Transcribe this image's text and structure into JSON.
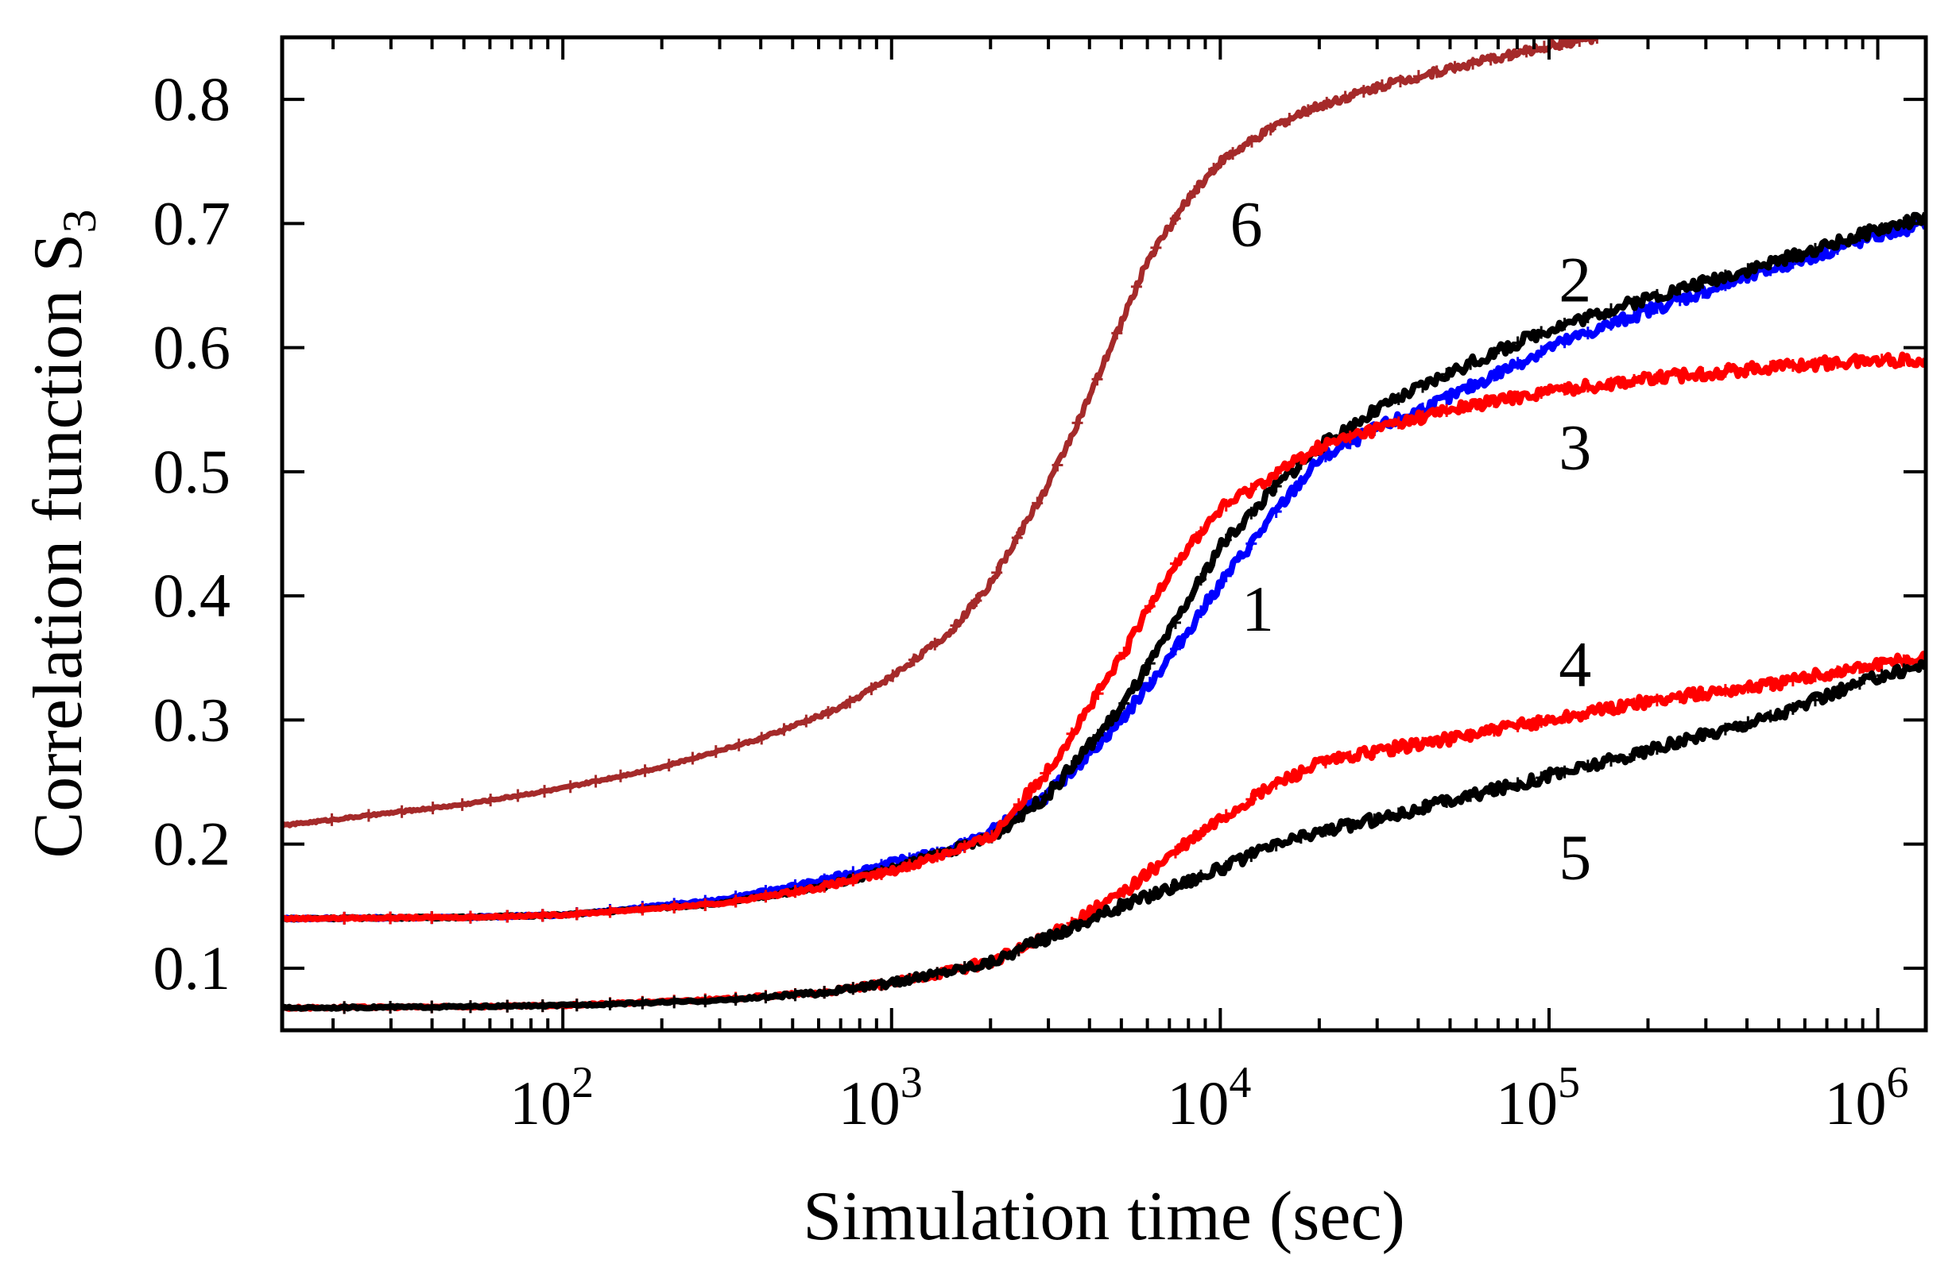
{
  "chart_data": {
    "type": "line",
    "xscale": "log",
    "xlim": [
      14,
      1400000
    ],
    "ylim": [
      0.05,
      0.85
    ],
    "xlabel": "Simulation time (sec)",
    "ylabel": "Correlation function S",
    "ylabel_subscript": "3",
    "x_ticks": [
      {
        "value": 100,
        "base": "10",
        "exp": "2"
      },
      {
        "value": 1000,
        "base": "10",
        "exp": "3"
      },
      {
        "value": 10000,
        "base": "10",
        "exp": "4"
      },
      {
        "value": 100000,
        "base": "10",
        "exp": "5"
      },
      {
        "value": 1000000,
        "base": "10",
        "exp": "6"
      }
    ],
    "y_ticks": [
      "0.1",
      "0.2",
      "0.3",
      "0.4",
      "0.5",
      "0.6",
      "0.7",
      "0.8"
    ],
    "grid": false,
    "legend": "none",
    "series": [
      {
        "label": "1",
        "color": "#0000ff",
        "label_at": [
          13000,
          0.39
        ],
        "points": [
          [
            14,
            0.14
          ],
          [
            50,
            0.141
          ],
          [
            100,
            0.143
          ],
          [
            300,
            0.155
          ],
          [
            600,
            0.17
          ],
          [
            1000,
            0.185
          ],
          [
            1500,
            0.195
          ],
          [
            2000,
            0.21
          ],
          [
            3000,
            0.24
          ],
          [
            5000,
            0.3
          ],
          [
            7000,
            0.35
          ],
          [
            10000,
            0.41
          ],
          [
            15000,
            0.47
          ],
          [
            20000,
            0.51
          ],
          [
            30000,
            0.535
          ],
          [
            50000,
            0.56
          ],
          [
            100000,
            0.6
          ],
          [
            200000,
            0.63
          ],
          [
            500000,
            0.665
          ],
          [
            1000000,
            0.69
          ],
          [
            1400000,
            0.7
          ]
        ]
      },
      {
        "label": "2",
        "color": "#000000",
        "label_at": [
          120000,
          0.655
        ],
        "points": [
          [
            14,
            0.14
          ],
          [
            50,
            0.141
          ],
          [
            100,
            0.143
          ],
          [
            300,
            0.152
          ],
          [
            600,
            0.165
          ],
          [
            1000,
            0.18
          ],
          [
            2000,
            0.205
          ],
          [
            3000,
            0.24
          ],
          [
            5000,
            0.31
          ],
          [
            7000,
            0.37
          ],
          [
            10000,
            0.44
          ],
          [
            15000,
            0.49
          ],
          [
            20000,
            0.52
          ],
          [
            30000,
            0.55
          ],
          [
            50000,
            0.58
          ],
          [
            100000,
            0.615
          ],
          [
            200000,
            0.64
          ],
          [
            500000,
            0.67
          ],
          [
            1000000,
            0.695
          ],
          [
            1400000,
            0.705
          ]
        ]
      },
      {
        "label": "3",
        "color": "#ff0000",
        "label_at": [
          120000,
          0.52
        ],
        "points": [
          [
            14,
            0.14
          ],
          [
            50,
            0.141
          ],
          [
            100,
            0.143
          ],
          [
            300,
            0.152
          ],
          [
            600,
            0.165
          ],
          [
            1000,
            0.178
          ],
          [
            2000,
            0.205
          ],
          [
            3000,
            0.26
          ],
          [
            5000,
            0.35
          ],
          [
            7000,
            0.42
          ],
          [
            10000,
            0.47
          ],
          [
            15000,
            0.5
          ],
          [
            20000,
            0.52
          ],
          [
            30000,
            0.535
          ],
          [
            50000,
            0.55
          ],
          [
            100000,
            0.565
          ],
          [
            200000,
            0.575
          ],
          [
            500000,
            0.585
          ],
          [
            1000000,
            0.59
          ],
          [
            1400000,
            0.59
          ]
        ]
      },
      {
        "label": "4",
        "color": "#ff0000",
        "label_at": [
          120000,
          0.345
        ],
        "points": [
          [
            14,
            0.068
          ],
          [
            50,
            0.069
          ],
          [
            100,
            0.07
          ],
          [
            300,
            0.075
          ],
          [
            600,
            0.08
          ],
          [
            1000,
            0.088
          ],
          [
            2000,
            0.105
          ],
          [
            3000,
            0.125
          ],
          [
            5000,
            0.16
          ],
          [
            7000,
            0.19
          ],
          [
            10000,
            0.22
          ],
          [
            15000,
            0.25
          ],
          [
            20000,
            0.265
          ],
          [
            30000,
            0.275
          ],
          [
            50000,
            0.285
          ],
          [
            100000,
            0.3
          ],
          [
            200000,
            0.315
          ],
          [
            500000,
            0.33
          ],
          [
            1000000,
            0.345
          ],
          [
            1400000,
            0.35
          ]
        ]
      },
      {
        "label": "5",
        "color": "#000000",
        "label_at": [
          120000,
          0.19
        ],
        "points": [
          [
            14,
            0.068
          ],
          [
            50,
            0.069
          ],
          [
            100,
            0.07
          ],
          [
            300,
            0.074
          ],
          [
            600,
            0.08
          ],
          [
            1000,
            0.088
          ],
          [
            2000,
            0.105
          ],
          [
            3000,
            0.125
          ],
          [
            5000,
            0.15
          ],
          [
            7000,
            0.165
          ],
          [
            10000,
            0.18
          ],
          [
            15000,
            0.2
          ],
          [
            20000,
            0.21
          ],
          [
            30000,
            0.22
          ],
          [
            50000,
            0.235
          ],
          [
            100000,
            0.255
          ],
          [
            200000,
            0.275
          ],
          [
            500000,
            0.305
          ],
          [
            1000000,
            0.335
          ],
          [
            1400000,
            0.345
          ]
        ]
      },
      {
        "label": "6",
        "color": "#a52a2a",
        "label_at": [
          12000,
          0.7
        ],
        "points": [
          [
            14,
            0.215
          ],
          [
            50,
            0.232
          ],
          [
            100,
            0.245
          ],
          [
            200,
            0.262
          ],
          [
            400,
            0.285
          ],
          [
            700,
            0.31
          ],
          [
            1000,
            0.335
          ],
          [
            1500,
            0.37
          ],
          [
            2000,
            0.41
          ],
          [
            3000,
            0.49
          ],
          [
            4000,
            0.56
          ],
          [
            5000,
            0.62
          ],
          [
            6000,
            0.67
          ],
          [
            8000,
            0.72
          ],
          [
            10000,
            0.75
          ],
          [
            15000,
            0.78
          ],
          [
            20000,
            0.795
          ],
          [
            30000,
            0.81
          ],
          [
            50000,
            0.825
          ],
          [
            100000,
            0.843
          ],
          [
            140000,
            0.85
          ]
        ]
      }
    ]
  }
}
